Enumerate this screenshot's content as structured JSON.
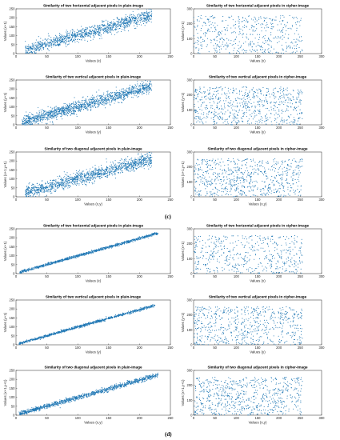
{
  "figure_labels": [
    "(c)",
    "(d)"
  ],
  "colors": {
    "points": "#1f77b4",
    "axis": "#262626",
    "frame": "#000000"
  },
  "chart_data": [
    {
      "id": "c1",
      "type": "scatter",
      "title": "Similarity of two horizontal adjacent pixels in plain-image",
      "xlabel": "Values (x)",
      "ylabel": "Values (x+1)",
      "xlim": [
        0,
        250
      ],
      "ylim": [
        0,
        250
      ],
      "xticks": [
        "0",
        "50",
        "100",
        "150",
        "200",
        "250"
      ],
      "yticks": [
        "0",
        "50",
        "100",
        "150",
        "200",
        "250"
      ],
      "grid": false,
      "distribution": {
        "kind": "correlated",
        "x_range": [
          15,
          220
        ],
        "y_over_x_slope": 0.95,
        "y_offset": 5,
        "y_noise": 40,
        "count": 1200
      }
    },
    {
      "id": "c2",
      "type": "scatter",
      "title": "Similarity of two horizontal adjacent pixels in cipher-image",
      "xlabel": "Values (x)",
      "ylabel": "Values (x+1)",
      "xlim": [
        0,
        300
      ],
      "ylim": [
        0,
        300
      ],
      "xticks": [
        "0",
        "50",
        "100",
        "150",
        "200",
        "250",
        "300"
      ],
      "yticks": [
        "0",
        "100",
        "200",
        "300"
      ],
      "grid": false,
      "distribution": {
        "kind": "uniform",
        "x_range": [
          0,
          255
        ],
        "y_range": [
          0,
          255
        ],
        "count": 500
      }
    },
    {
      "id": "c3",
      "type": "scatter",
      "title": "Similarity of two vertical adjacent pixels in plain-image",
      "xlabel": "Values (y)",
      "ylabel": "Values (y+1)",
      "xlim": [
        0,
        250
      ],
      "ylim": [
        0,
        250
      ],
      "xticks": [
        "0",
        "50",
        "100",
        "150",
        "200",
        "250"
      ],
      "yticks": [
        "0",
        "50",
        "100",
        "150",
        "200",
        "250"
      ],
      "grid": false,
      "distribution": {
        "kind": "correlated",
        "x_range": [
          10,
          220
        ],
        "y_over_x_slope": 0.95,
        "y_offset": 5,
        "y_noise": 38,
        "count": 1400
      }
    },
    {
      "id": "c4",
      "type": "scatter",
      "title": "Similarity of two vertical adjacent pixels in cipher-image",
      "xlabel": "Values (y)",
      "ylabel": "Values (y+1)",
      "xlim": [
        0,
        300
      ],
      "ylim": [
        0,
        300
      ],
      "xticks": [
        "0",
        "50",
        "100",
        "150",
        "200",
        "250",
        "300"
      ],
      "yticks": [
        "0",
        "100",
        "200",
        "300"
      ],
      "grid": false,
      "distribution": {
        "kind": "uniform",
        "x_range": [
          0,
          255
        ],
        "y_range": [
          0,
          255
        ],
        "count": 700
      }
    },
    {
      "id": "c5",
      "type": "scatter",
      "title": "Similarity of two diagonal adjacent pixels in plain-image",
      "xlabel": "Values (x,y)",
      "ylabel": "Values (x+1,y+1)",
      "xlim": [
        0,
        250
      ],
      "ylim": [
        0,
        250
      ],
      "xticks": [
        "0",
        "50",
        "100",
        "150",
        "200",
        "250"
      ],
      "yticks": [
        "0",
        "50",
        "100",
        "150",
        "200",
        "250"
      ],
      "grid": false,
      "distribution": {
        "kind": "correlated",
        "x_range": [
          15,
          220
        ],
        "y_over_x_slope": 0.92,
        "y_offset": 8,
        "y_noise": 40,
        "count": 1300
      }
    },
    {
      "id": "c6",
      "type": "scatter",
      "title": "Similarity of two diagonal adjacent pixels in cipher-image",
      "xlabel": "Values (x,y)",
      "ylabel": "Values (x+1,y+1)",
      "xlim": [
        0,
        300
      ],
      "ylim": [
        0,
        300
      ],
      "xticks": [
        "0",
        "50",
        "100",
        "150",
        "200",
        "250",
        "300"
      ],
      "yticks": [
        "0",
        "100",
        "200",
        "300"
      ],
      "grid": false,
      "distribution": {
        "kind": "uniform",
        "x_range": [
          0,
          255
        ],
        "y_range": [
          0,
          255
        ],
        "count": 700
      }
    },
    {
      "id": "d1",
      "type": "scatter",
      "title": "Similarity of two horizontal adjacent pixels in plain-image",
      "xlabel": "Values (x)",
      "ylabel": "Values (x+1)",
      "xlim": [
        0,
        250
      ],
      "ylim": [
        0,
        250
      ],
      "xticks": [
        "0",
        "50",
        "100",
        "150",
        "200",
        "250"
      ],
      "yticks": [
        "0",
        "50",
        "100",
        "150",
        "200",
        "250"
      ],
      "grid": false,
      "distribution": {
        "kind": "correlated",
        "x_range": [
          5,
          230
        ],
        "y_over_x_slope": 0.97,
        "y_offset": 2,
        "y_noise": 8,
        "count": 1000
      }
    },
    {
      "id": "d2",
      "type": "scatter",
      "title": "Similarity of two horizontal adjacent pixels in cipher-image",
      "xlabel": "Values (x)",
      "ylabel": "Values (x+1)",
      "xlim": [
        0,
        300
      ],
      "ylim": [
        0,
        300
      ],
      "xticks": [
        "0",
        "50",
        "100",
        "150",
        "200",
        "250",
        "300"
      ],
      "yticks": [
        "0",
        "100",
        "200",
        "300"
      ],
      "grid": false,
      "distribution": {
        "kind": "uniform",
        "x_range": [
          0,
          255
        ],
        "y_range": [
          0,
          255
        ],
        "count": 500
      }
    },
    {
      "id": "d3",
      "type": "scatter",
      "title": "Similarity of two vertical adjacent pixels in plain-image",
      "xlabel": "Values (y)",
      "ylabel": "Values (y+1)",
      "xlim": [
        0,
        250
      ],
      "ylim": [
        0,
        250
      ],
      "xticks": [
        "0",
        "50",
        "100",
        "150",
        "200",
        "250"
      ],
      "yticks": [
        "0",
        "50",
        "100",
        "150",
        "200",
        "250"
      ],
      "grid": false,
      "distribution": {
        "kind": "correlated",
        "x_range": [
          5,
          225
        ],
        "y_over_x_slope": 0.97,
        "y_offset": 2,
        "y_noise": 8,
        "count": 1000
      }
    },
    {
      "id": "d4",
      "type": "scatter",
      "title": "Similarity of two vertical adjacent pixels in cipher-image",
      "xlabel": "Values (y)",
      "ylabel": "Values (y+1)",
      "xlim": [
        0,
        300
      ],
      "ylim": [
        0,
        300
      ],
      "xticks": [
        "0",
        "50",
        "100",
        "150",
        "200",
        "250",
        "300"
      ],
      "yticks": [
        "0",
        "100",
        "200",
        "300"
      ],
      "grid": false,
      "distribution": {
        "kind": "uniform",
        "x_range": [
          0,
          255
        ],
        "y_range": [
          0,
          255
        ],
        "count": 650
      }
    },
    {
      "id": "d5",
      "type": "scatter",
      "title": "Similarity of two diagonal adjacent pixels in plain-image",
      "xlabel": "Values (x,y)",
      "ylabel": "Values (x+1,y+1)",
      "xlim": [
        0,
        250
      ],
      "ylim": [
        0,
        250
      ],
      "xticks": [
        "0",
        "50",
        "100",
        "150",
        "200",
        "250"
      ],
      "yticks": [
        "0",
        "50",
        "100",
        "150",
        "200",
        "250"
      ],
      "grid": false,
      "distribution": {
        "kind": "correlated",
        "x_range": [
          5,
          230
        ],
        "y_over_x_slope": 0.96,
        "y_offset": 3,
        "y_noise": 14,
        "count": 1100
      }
    },
    {
      "id": "d6",
      "type": "scatter",
      "title": "Similarity of two diagonal adjacent pixels in cipher-image",
      "xlabel": "Values (x,y)",
      "ylabel": "Values (x+1,y+1)",
      "xlim": [
        0,
        300
      ],
      "ylim": [
        0,
        300
      ],
      "xticks": [
        "0",
        "50",
        "100",
        "150",
        "200",
        "250",
        "300"
      ],
      "yticks": [
        "0",
        "100",
        "200",
        "300"
      ],
      "grid": false,
      "distribution": {
        "kind": "uniform",
        "x_range": [
          0,
          255
        ],
        "y_range": [
          0,
          255
        ],
        "count": 700
      }
    }
  ]
}
